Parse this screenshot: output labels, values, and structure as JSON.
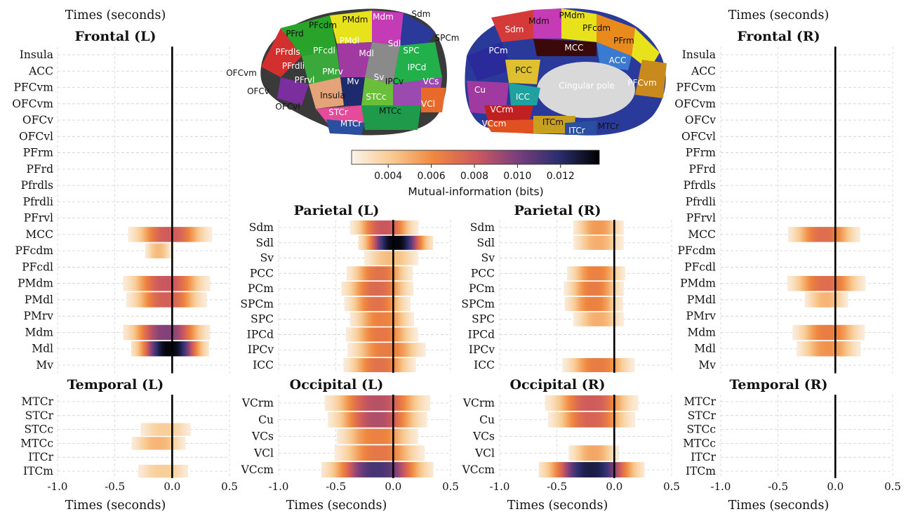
{
  "colorbar": {
    "label": "Mutual-information (bits)",
    "ticks": [
      "0.004",
      "0.006",
      "0.008",
      "0.010",
      "0.012"
    ],
    "tick_values": [
      0.004,
      0.006,
      0.008,
      0.01,
      0.012
    ],
    "range": [
      0.0023,
      0.0138
    ],
    "colors": [
      "#fbf3ea",
      "#f8c98f",
      "#f0873e",
      "#cf5a5c",
      "#7b3f7d",
      "#2c2f6e",
      "#000000"
    ]
  },
  "brain": {
    "lateral_labels": [
      "PMdm",
      "Mdm",
      "Sdm",
      "PFrd",
      "PFcdm",
      "SPCm",
      "PMdl",
      "Sdl",
      "PFrdls",
      "PFcdl",
      "Mdl",
      "SPC",
      "OFCvm",
      "PFrdli",
      "PMrv",
      "Mv",
      "Sv",
      "IPCd",
      "OFCv",
      "PFrvl",
      "IPCv",
      "VCs",
      "Insula",
      "STCc",
      "OFCvl",
      "VCl",
      "STCr",
      "MTCc",
      "MTCr"
    ],
    "medial_labels": [
      "PMdm",
      "Mdm",
      "Sdm",
      "PFcdm",
      "PFrm",
      "PCm",
      "MCC",
      "ACC",
      "PCC",
      "Cingular pole",
      "PFCvm",
      "Cu",
      "ICC",
      "VCrm",
      "VCcm",
      "ITCm",
      "ITCr",
      "MTCr"
    ]
  },
  "chart_data": [
    {
      "type": "heatmap",
      "title": "Frontal (L)",
      "xlabel": "Times (seconds)",
      "xlim": [
        -1.0,
        0.5
      ],
      "x_ticks": [
        "-1.0",
        "-0.5",
        "0.0",
        "0.5"
      ],
      "rows": [
        "Insula",
        "ACC",
        "PFCvm",
        "OFCvm",
        "OFCv",
        "OFCvl",
        "PFrm",
        "PFrd",
        "Pfrdls",
        "Pfrdli",
        "PFrvl",
        "MCC",
        "PFcdm",
        "PFcdl",
        "PMdm",
        "PMdl",
        "PMrv",
        "Mdm",
        "Mdl",
        "Mv"
      ],
      "blobs": [
        {
          "row": "MCC",
          "center": -0.02,
          "width": 0.27,
          "peak": 0.008
        },
        {
          "row": "PFcdm",
          "center": -0.12,
          "width": 0.1,
          "peak": 0.0046
        },
        {
          "row": "PMdm",
          "center": -0.05,
          "width": 0.28,
          "peak": 0.0082
        },
        {
          "row": "PMdl",
          "center": -0.05,
          "width": 0.26,
          "peak": 0.0078
        },
        {
          "row": "Mdm",
          "center": -0.05,
          "width": 0.28,
          "peak": 0.0098
        },
        {
          "row": "Mdl",
          "center": -0.02,
          "width": 0.25,
          "peak": 0.0136
        }
      ]
    },
    {
      "type": "heatmap",
      "title": "Parietal (L)",
      "xlabel": "",
      "xlim": [
        -1.0,
        0.5
      ],
      "x_ticks": [],
      "rows": [
        "Sdm",
        "Sdl",
        "Sv",
        "PCC",
        "PCm",
        "SPCm",
        "SPC",
        "IPCd",
        "IPCv",
        "ICC"
      ],
      "blobs": [
        {
          "row": "Sdm",
          "center": -0.08,
          "width": 0.22,
          "peak": 0.0082
        },
        {
          "row": "Sdl",
          "center": 0.02,
          "width": 0.24,
          "peak": 0.0136
        },
        {
          "row": "Sv",
          "center": -0.02,
          "width": 0.2,
          "peak": 0.0046
        },
        {
          "row": "PCC",
          "center": -0.12,
          "width": 0.22,
          "peak": 0.007
        },
        {
          "row": "PCm",
          "center": -0.14,
          "width": 0.24,
          "peak": 0.0074
        },
        {
          "row": "SPCm",
          "center": -0.14,
          "width": 0.22,
          "peak": 0.007
        },
        {
          "row": "SPC",
          "center": -0.1,
          "width": 0.22,
          "peak": 0.0064
        },
        {
          "row": "IPCd",
          "center": -0.1,
          "width": 0.24,
          "peak": 0.0068
        },
        {
          "row": "IPCv",
          "center": -0.06,
          "width": 0.26,
          "peak": 0.0066
        },
        {
          "row": "ICC",
          "center": -0.12,
          "width": 0.24,
          "peak": 0.007
        }
      ]
    },
    {
      "type": "heatmap",
      "title": "Parietal (R)",
      "xlabel": "",
      "xlim": [
        -1.0,
        0.5
      ],
      "x_ticks": [],
      "rows": [
        "Sdm",
        "Sdl",
        "Sv",
        "PCC",
        "PCm",
        "SPCm",
        "SPC",
        "IPCd",
        "IPCv",
        "ICC"
      ],
      "blobs": [
        {
          "row": "Sdm",
          "center": -0.14,
          "width": 0.18,
          "peak": 0.0056
        },
        {
          "row": "Sdl",
          "center": -0.14,
          "width": 0.18,
          "peak": 0.005
        },
        {
          "row": "PCC",
          "center": -0.16,
          "width": 0.2,
          "peak": 0.0064
        },
        {
          "row": "PCm",
          "center": -0.18,
          "width": 0.2,
          "peak": 0.0066
        },
        {
          "row": "SPCm",
          "center": -0.18,
          "width": 0.2,
          "peak": 0.0064
        },
        {
          "row": "SPC",
          "center": -0.14,
          "width": 0.18,
          "peak": 0.005
        },
        {
          "row": "ICC",
          "center": -0.14,
          "width": 0.24,
          "peak": 0.0066
        }
      ]
    },
    {
      "type": "heatmap",
      "title": "Frontal (R)",
      "xlabel": "Times (seconds)",
      "xlim": [
        -1.0,
        0.5
      ],
      "x_ticks": [
        "-1.0",
        "-0.5",
        "0.0",
        "0.5"
      ],
      "rows": [
        "Insula",
        "ACC",
        "PFCvm",
        "OFCvm",
        "OFCv",
        "OFCvl",
        "PFrm",
        "PFrd",
        "Pfrdls",
        "Pfrdli",
        "PFrvl",
        "MCC",
        "PFcdm",
        "PFcdl",
        "PMdm",
        "PMdl",
        "PMrv",
        "Mdm",
        "Mdl",
        "Mv"
      ],
      "blobs": [
        {
          "row": "MCC",
          "center": -0.1,
          "width": 0.24,
          "peak": 0.0072
        },
        {
          "row": "PMdm",
          "center": -0.08,
          "width": 0.26,
          "peak": 0.0072
        },
        {
          "row": "PMdl",
          "center": -0.08,
          "width": 0.16,
          "peak": 0.0048
        },
        {
          "row": "Mdm",
          "center": -0.06,
          "width": 0.24,
          "peak": 0.0066
        },
        {
          "row": "Mdl",
          "center": -0.06,
          "width": 0.22,
          "peak": 0.0058
        }
      ]
    },
    {
      "type": "heatmap",
      "title": "Temporal (L)",
      "xlabel": "Times (seconds)",
      "xlim": [
        -1.0,
        0.5
      ],
      "x_ticks": [
        "-1.0",
        "-0.5",
        "0.0",
        "0.5"
      ],
      "rows": [
        "MTCr",
        "STCr",
        "STCc",
        "MTCc",
        "ITCr",
        "ITCm"
      ],
      "blobs": [
        {
          "row": "STCc",
          "center": -0.06,
          "width": 0.2,
          "peak": 0.004
        },
        {
          "row": "MTCc",
          "center": -0.12,
          "width": 0.2,
          "peak": 0.0048
        },
        {
          "row": "ITCm",
          "center": -0.08,
          "width": 0.2,
          "peak": 0.004
        }
      ]
    },
    {
      "type": "heatmap",
      "title": "Occipital (L)",
      "xlabel": "Times (seconds)",
      "xlim": [
        -1.0,
        0.5
      ],
      "x_ticks": [
        "-1.0",
        "-0.5",
        "0.0",
        "0.5"
      ],
      "rows": [
        "VCrm",
        "Cu",
        "VCs",
        "VCl",
        "VCcm"
      ],
      "blobs": [
        {
          "row": "VCrm",
          "center": -0.14,
          "width": 0.34,
          "peak": 0.0086
        },
        {
          "row": "Cu",
          "center": -0.14,
          "width": 0.32,
          "peak": 0.0088
        },
        {
          "row": "VCs",
          "center": -0.14,
          "width": 0.28,
          "peak": 0.0064
        },
        {
          "row": "VCl",
          "center": -0.12,
          "width": 0.3,
          "peak": 0.0068
        },
        {
          "row": "VCcm",
          "center": -0.14,
          "width": 0.36,
          "peak": 0.0112
        }
      ]
    },
    {
      "type": "heatmap",
      "title": "Occipital (R)",
      "xlabel": "Times (seconds)",
      "xlim": [
        -1.0,
        0.5
      ],
      "x_ticks": [
        "-1.0",
        "-0.5",
        "0.0",
        "0.5"
      ],
      "rows": [
        "VCrm",
        "Cu",
        "VCs",
        "VCl",
        "VCcm"
      ],
      "blobs": [
        {
          "row": "VCrm",
          "center": -0.2,
          "width": 0.3,
          "peak": 0.008
        },
        {
          "row": "Cu",
          "center": -0.2,
          "width": 0.28,
          "peak": 0.0076
        },
        {
          "row": "VCl",
          "center": -0.18,
          "width": 0.18,
          "peak": 0.0052
        },
        {
          "row": "VCcm",
          "center": -0.2,
          "width": 0.34,
          "peak": 0.0126
        }
      ]
    },
    {
      "type": "heatmap",
      "title": "Temporal (R)",
      "xlabel": "Times (seconds)",
      "xlim": [
        -1.0,
        0.5
      ],
      "x_ticks": [
        "-1.0",
        "-0.5",
        "0.0",
        "0.5"
      ],
      "rows": [
        "MTCr",
        "STCr",
        "STCc",
        "MTCc",
        "ITCr",
        "ITCm"
      ],
      "blobs": []
    }
  ]
}
